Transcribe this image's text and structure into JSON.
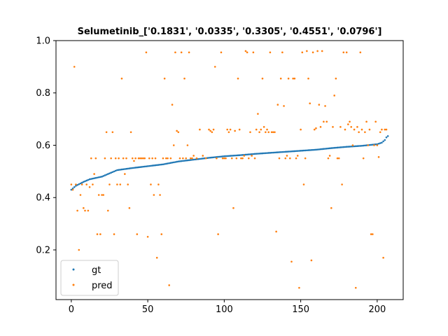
{
  "chart_data": {
    "type": "scatter",
    "title": "Selumetinib_['0.1831', '0.0335', '0.3305', '0.4551', '0.0796']",
    "xlabel": "",
    "ylabel": "",
    "xlim": [
      -10,
      217
    ],
    "ylim": [
      0.01,
      1.0
    ],
    "x_ticks": [
      0,
      50,
      100,
      150,
      200
    ],
    "y_ticks": [
      0.2,
      0.4,
      0.6,
      0.8,
      1.0
    ],
    "x_tick_labels": [
      "0",
      "50",
      "100",
      "150",
      "200"
    ],
    "y_tick_labels": [
      "0.2",
      "0.4",
      "0.6",
      "0.8",
      "1.0"
    ],
    "legend_position": "lower-left",
    "grid": false,
    "colors": {
      "gt": "#1f77b4",
      "pred": "#ff7f0e"
    },
    "series": [
      {
        "name": "gt",
        "gt_curve": [
          [
            0,
            0.43
          ],
          [
            3,
            0.445
          ],
          [
            8,
            0.46
          ],
          [
            12,
            0.47
          ],
          [
            20,
            0.48
          ],
          [
            30,
            0.505
          ],
          [
            40,
            0.513
          ],
          [
            50,
            0.52
          ],
          [
            60,
            0.527
          ],
          [
            70,
            0.538
          ],
          [
            80,
            0.545
          ],
          [
            90,
            0.552
          ],
          [
            100,
            0.558
          ],
          [
            110,
            0.562
          ],
          [
            120,
            0.567
          ],
          [
            130,
            0.571
          ],
          [
            140,
            0.575
          ],
          [
            150,
            0.579
          ],
          [
            160,
            0.583
          ],
          [
            170,
            0.589
          ],
          [
            180,
            0.594
          ],
          [
            190,
            0.598
          ],
          [
            200,
            0.604
          ],
          [
            203,
            0.61
          ],
          [
            205,
            0.62
          ],
          [
            206,
            0.63
          ],
          [
            207,
            0.635
          ]
        ],
        "count": 208
      },
      {
        "name": "pred",
        "points": [
          [
            0,
            0.45
          ],
          [
            1,
            0.43
          ],
          [
            2,
            0.9
          ],
          [
            3,
            0.45
          ],
          [
            4,
            0.35
          ],
          [
            5,
            0.2
          ],
          [
            6,
            0.41
          ],
          [
            7,
            0.45
          ],
          [
            8,
            0.36
          ],
          [
            9,
            0.35
          ],
          [
            10,
            0.45
          ],
          [
            11,
            0.35
          ],
          [
            12,
            0.44
          ],
          [
            13,
            0.55
          ],
          [
            14,
            0.45
          ],
          [
            15,
            0.49
          ],
          [
            16,
            0.55
          ],
          [
            17,
            0.26
          ],
          [
            18,
            0.41
          ],
          [
            19,
            0.26
          ],
          [
            20,
            0.41
          ],
          [
            21,
            0.41
          ],
          [
            22,
            0.55
          ],
          [
            23,
            0.65
          ],
          [
            24,
            0.35
          ],
          [
            25,
            0.45
          ],
          [
            26,
            0.55
          ],
          [
            27,
            0.65
          ],
          [
            28,
            0.26
          ],
          [
            29,
            0.55
          ],
          [
            30,
            0.45
          ],
          [
            31,
            0.55
          ],
          [
            32,
            0.45
          ],
          [
            33,
            0.855
          ],
          [
            34,
            0.55
          ],
          [
            35,
            0.49
          ],
          [
            36,
            0.55
          ],
          [
            37,
            0.45
          ],
          [
            38,
            0.36
          ],
          [
            39,
            0.65
          ],
          [
            40,
            0.55
          ],
          [
            41,
            0.54
          ],
          [
            42,
            0.55
          ],
          [
            43,
            0.26
          ],
          [
            44,
            0.55
          ],
          [
            45,
            0.55
          ],
          [
            46,
            0.55
          ],
          [
            47,
            0.55
          ],
          [
            48,
            0.55
          ],
          [
            49,
            0.955
          ],
          [
            50,
            0.25
          ],
          [
            51,
            0.55
          ],
          [
            52,
            0.45
          ],
          [
            53,
            0.55
          ],
          [
            54,
            0.41
          ],
          [
            55,
            0.55
          ],
          [
            56,
            0.17
          ],
          [
            57,
            0.45
          ],
          [
            58,
            0.41
          ],
          [
            59,
            0.26
          ],
          [
            60,
            0.55
          ],
          [
            61,
            0.855
          ],
          [
            62,
            0.55
          ],
          [
            63,
            0.55
          ],
          [
            64,
            0.065
          ],
          [
            65,
            0.55
          ],
          [
            66,
            0.755
          ],
          [
            67,
            0.6
          ],
          [
            68,
            0.955
          ],
          [
            69,
            0.655
          ],
          [
            70,
            0.65
          ],
          [
            71,
            0.55
          ],
          [
            72,
            0.955
          ],
          [
            73,
            0.55
          ],
          [
            74,
            0.855
          ],
          [
            75,
            0.55
          ],
          [
            76,
            0.6
          ],
          [
            77,
            0.955
          ],
          [
            78,
            0.55
          ],
          [
            79,
            0.55
          ],
          [
            80,
            0.56
          ],
          [
            82,
            0.55
          ],
          [
            84,
            0.66
          ],
          [
            86,
            0.56
          ],
          [
            88,
            0.55
          ],
          [
            90,
            0.66
          ],
          [
            91,
            0.655
          ],
          [
            92,
            0.65
          ],
          [
            93,
            0.66
          ],
          [
            94,
            0.9
          ],
          [
            95,
            0.55
          ],
          [
            96,
            0.26
          ],
          [
            98,
            0.955
          ],
          [
            99,
            0.55
          ],
          [
            100,
            0.55
          ],
          [
            101,
            0.55
          ],
          [
            102,
            0.66
          ],
          [
            103,
            0.65
          ],
          [
            104,
            0.66
          ],
          [
            105,
            0.55
          ],
          [
            106,
            0.36
          ],
          [
            107,
            0.655
          ],
          [
            108,
            0.55
          ],
          [
            109,
            0.855
          ],
          [
            110,
            0.66
          ],
          [
            111,
            0.55
          ],
          [
            112,
            0.55
          ],
          [
            113,
            0.56
          ],
          [
            114,
            0.96
          ],
          [
            115,
            0.955
          ],
          [
            116,
            0.55
          ],
          [
            117,
            0.65
          ],
          [
            118,
            0.56
          ],
          [
            119,
            0.955
          ],
          [
            120,
            0.55
          ],
          [
            121,
            0.66
          ],
          [
            122,
            0.72
          ],
          [
            123,
            0.65
          ],
          [
            124,
            0.66
          ],
          [
            125,
            0.855
          ],
          [
            126,
            0.67
          ],
          [
            127,
            0.65
          ],
          [
            128,
            0.66
          ],
          [
            129,
            0.65
          ],
          [
            130,
            0.955
          ],
          [
            131,
            0.65
          ],
          [
            132,
            0.65
          ],
          [
            133,
            0.65
          ],
          [
            134,
            0.27
          ],
          [
            135,
            0.755
          ],
          [
            136,
            0.55
          ],
          [
            137,
            0.855
          ],
          [
            138,
            0.955
          ],
          [
            139,
            0.75
          ],
          [
            140,
            0.55
          ],
          [
            141,
            0.56
          ],
          [
            142,
            0.855
          ],
          [
            143,
            0.55
          ],
          [
            144,
            0.155
          ],
          [
            145,
            0.855
          ],
          [
            146,
            0.855
          ],
          [
            147,
            0.55
          ],
          [
            148,
            0.56
          ],
          [
            149,
            0.055
          ],
          [
            150,
            0.66
          ],
          [
            151,
            0.955
          ],
          [
            152,
            0.45
          ],
          [
            153,
            0.55
          ],
          [
            154,
            0.96
          ],
          [
            155,
            0.855
          ],
          [
            156,
            0.76
          ],
          [
            157,
            0.16
          ],
          [
            158,
            0.955
          ],
          [
            159,
            0.66
          ],
          [
            160,
            0.665
          ],
          [
            161,
            0.96
          ],
          [
            162,
            0.755
          ],
          [
            163,
            0.67
          ],
          [
            164,
            0.96
          ],
          [
            165,
            0.69
          ],
          [
            166,
            0.75
          ],
          [
            167,
            0.69
          ],
          [
            168,
            0.55
          ],
          [
            169,
            0.56
          ],
          [
            170,
            0.36
          ],
          [
            171,
            0.67
          ],
          [
            172,
            0.79
          ],
          [
            173,
            0.855
          ],
          [
            174,
            0.55
          ],
          [
            175,
            0.55
          ],
          [
            176,
            0.67
          ],
          [
            177,
            0.45
          ],
          [
            178,
            0.955
          ],
          [
            179,
            0.66
          ],
          [
            180,
            0.955
          ],
          [
            181,
            0.68
          ],
          [
            182,
            0.69
          ],
          [
            183,
            0.67
          ],
          [
            184,
            0.6
          ],
          [
            185,
            0.66
          ],
          [
            186,
            0.055
          ],
          [
            187,
            0.67
          ],
          [
            188,
            0.65
          ],
          [
            189,
            0.955
          ],
          [
            190,
            0.66
          ],
          [
            191,
            0.55
          ],
          [
            192,
            0.65
          ],
          [
            193,
            0.69
          ],
          [
            194,
            0.6
          ],
          [
            195,
            0.66
          ],
          [
            196,
            0.26
          ],
          [
            197,
            0.26
          ],
          [
            198,
            0.6
          ],
          [
            199,
            0.69
          ],
          [
            200,
            0.6
          ],
          [
            201,
            0.555
          ],
          [
            202,
            0.65
          ],
          [
            203,
            0.66
          ],
          [
            204,
            0.17
          ],
          [
            205,
            0.66
          ],
          [
            206,
            0.66
          ]
        ]
      }
    ]
  }
}
